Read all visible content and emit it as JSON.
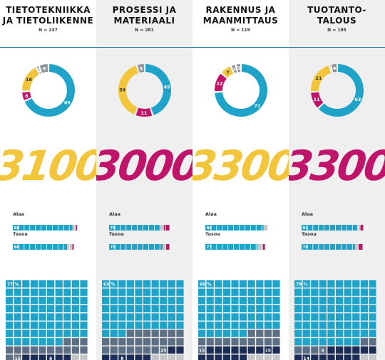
{
  "colors": {
    "blue": "#1fa3c9",
    "yellow": "#f2c53a",
    "magenta": "#c0136a",
    "gray": "#8d9399",
    "lightgray": "#c4c7ca",
    "slate": "#5d6f85",
    "navy": "#1b2c55",
    "white": "#ffffff"
  },
  "bar_labels": {
    "alaa": "Alaa",
    "tasoa": "Tasoa"
  },
  "chart_data": [
    {
      "type": "donut",
      "title": "TIETOTEKNIIKKA\nJA TIETOLIIKENNE",
      "n_label": "N = 237",
      "donut": [
        {
          "color": "blue",
          "value": 69
        },
        {
          "color": "magenta",
          "value": 6
        },
        {
          "color": "yellow",
          "value": 18
        },
        {
          "color": "gray",
          "value": 2
        },
        {
          "color": "gray",
          "value": 6
        }
      ],
      "big_number": "3100",
      "big_color": "yellow",
      "bars": {
        "alaa": {
          "blue": 88,
          "gray": 5,
          "magenta": 2
        },
        "tasoa": {
          "blue": 80,
          "gray": 8,
          "magenta": 2
        }
      },
      "grid": {
        "top": 77,
        "top_label": "77 %",
        "mid": 15,
        "bottom": 6
      }
    },
    {
      "type": "donut",
      "title": "PROSESSI JA\nMATERIAALI",
      "n_label": "N = 281",
      "donut": [
        {
          "color": "blue",
          "value": 45
        },
        {
          "color": "magenta",
          "value": 11
        },
        {
          "color": "yellow",
          "value": 39
        },
        {
          "color": "gray",
          "value": 5
        }
      ],
      "big_number": "3000",
      "big_color": "magenta",
      "bars": {
        "alaa": {
          "blue": 76,
          "gray": 5,
          "magenta": 8
        },
        "tasoa": {
          "blue": 79,
          "gray": 5,
          "magenta": 5
        }
      },
      "grid": {
        "top": 63,
        "top_label": "63 %",
        "mid": 25,
        "bottom": 8
      }
    },
    {
      "type": "donut",
      "title": "RAKENNUS JA\nMAANMITTAUS",
      "n_label": "N = 119",
      "donut": [
        {
          "color": "blue",
          "value": 71
        },
        {
          "color": "magenta",
          "value": 12
        },
        {
          "color": "yellow",
          "value": 7
        },
        {
          "color": "gray",
          "value": 3
        },
        {
          "color": "gray",
          "value": 3
        }
      ],
      "big_number": "3300",
      "big_color": "yellow",
      "bars": {
        "alaa": {
          "blue": 86,
          "gray": 5,
          "magenta": 1
        },
        "tasoa": {
          "blue": 77,
          "gray": 8,
          "magenta": 3
        }
      },
      "grid": {
        "top": 66,
        "top_label": "66 %",
        "mid": 15,
        "bottom": 15
      }
    },
    {
      "type": "donut",
      "title": "TUOTANTO-\nTALOUS",
      "n_label": "N = 195",
      "donut": [
        {
          "color": "blue",
          "value": 63
        },
        {
          "color": "magenta",
          "value": 11
        },
        {
          "color": "yellow",
          "value": 21
        },
        {
          "color": "gray",
          "value": 1
        },
        {
          "color": "gray",
          "value": 4
        }
      ],
      "big_number": "3300",
      "big_color": "magenta",
      "bars": {
        "alaa": {
          "blue": 82,
          "gray": 5,
          "magenta": 4
        },
        "tasoa": {
          "blue": 79,
          "gray": 5,
          "magenta": 6
        }
      },
      "grid": {
        "top": 78,
        "top_label": "78 %",
        "mid": 6,
        "bottom": 14
      }
    }
  ]
}
